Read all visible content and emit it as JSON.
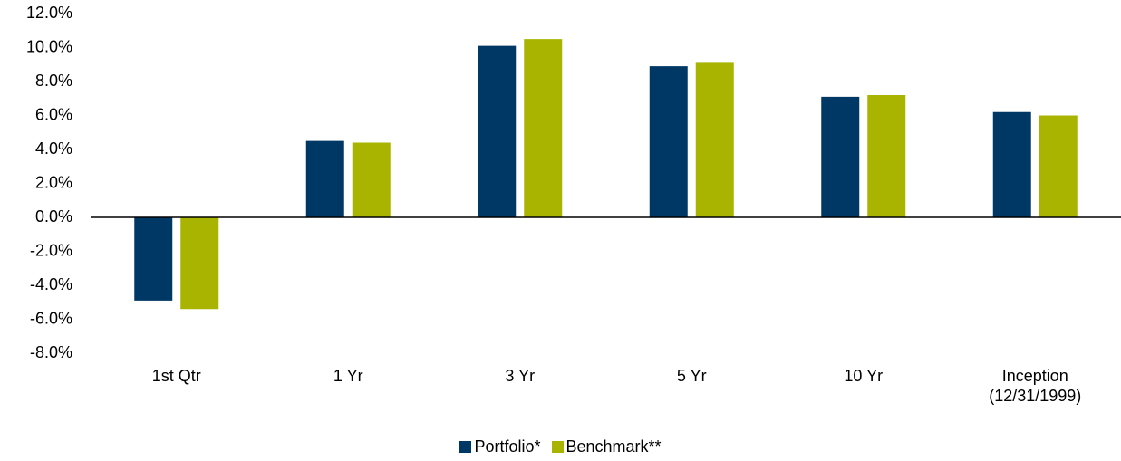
{
  "chart_data": {
    "type": "bar",
    "categories": [
      "1st Qtr",
      "1 Yr",
      "3 Yr",
      "5 Yr",
      "10 Yr",
      "Inception\n(12/31/1999)"
    ],
    "series": [
      {
        "name": "Portfolio*",
        "color": "#003865",
        "values": [
          -4.9,
          4.5,
          10.1,
          8.9,
          7.1,
          6.2
        ]
      },
      {
        "name": "Benchmark**",
        "color": "#a8b400",
        "values": [
          -5.4,
          4.4,
          10.5,
          9.1,
          7.2,
          6.0
        ]
      }
    ],
    "ylim": [
      -8,
      12
    ],
    "yticks": [
      {
        "value": -8,
        "label": "-8.0%"
      },
      {
        "value": -6,
        "label": "-6.0%"
      },
      {
        "value": -4,
        "label": "-4.0%"
      },
      {
        "value": -2,
        "label": "-2.0%"
      },
      {
        "value": 0,
        "label": "0.0%"
      },
      {
        "value": 2,
        "label": "2.0%"
      },
      {
        "value": 4,
        "label": "4.0%"
      },
      {
        "value": 6,
        "label": "6.0%"
      },
      {
        "value": 8,
        "label": "8.0%"
      },
      {
        "value": 10,
        "label": "10.0%"
      },
      {
        "value": 12,
        "label": "12.0%"
      }
    ],
    "grid": false,
    "legend": "bottom"
  }
}
